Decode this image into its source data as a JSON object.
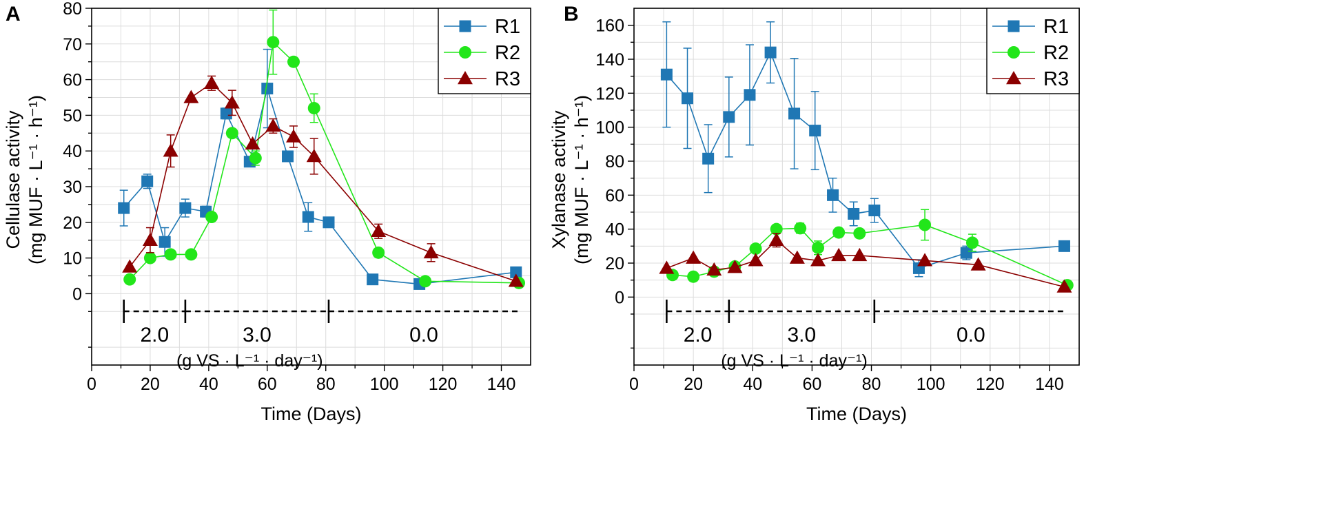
{
  "chart_data": [
    {
      "panel": "A",
      "type": "line",
      "xlabel": "Time (Days)",
      "ylabel_line1": "Cellulase activity",
      "ylabel_line2": "(mg MUF · L⁻¹ · h⁻¹)",
      "xlim": [
        0,
        150
      ],
      "ylim": [
        -20,
        80
      ],
      "xticks": [
        0,
        20,
        40,
        60,
        80,
        100,
        120,
        140
      ],
      "yticks": [
        0,
        10,
        20,
        30,
        40,
        50,
        60,
        70,
        80
      ],
      "legend_position": "top-right",
      "series": [
        {
          "name": "R1",
          "marker": "square",
          "color": "#1f77b4",
          "x": [
            11,
            19,
            25,
            32,
            39,
            46,
            54,
            60,
            67,
            74,
            81,
            96,
            112,
            145
          ],
          "y": [
            24,
            31.5,
            14.5,
            24,
            23,
            50.5,
            37,
            57.5,
            38.5,
            21.5,
            20,
            4,
            2.7,
            6
          ],
          "err": [
            5,
            2,
            4,
            2.5,
            1.5,
            1.5,
            1,
            11,
            1,
            4,
            0,
            0,
            0,
            0
          ]
        },
        {
          "name": "R2",
          "marker": "circle",
          "color": "#22e61a",
          "x": [
            13,
            20,
            27,
            34,
            41,
            48,
            56,
            62,
            69,
            76,
            98,
            114,
            146
          ],
          "y": [
            4,
            10,
            11,
            11,
            21.5,
            45,
            38,
            70.5,
            65,
            52,
            11.5,
            3.5,
            3
          ],
          "err": [
            0,
            0,
            0,
            0,
            0,
            0,
            2,
            9,
            0,
            4,
            0,
            0,
            0
          ]
        },
        {
          "name": "R3",
          "marker": "triangle",
          "color": "#8b0000",
          "x": [
            13,
            20,
            27,
            34,
            41,
            48,
            55,
            62,
            69,
            76,
            98,
            116,
            145
          ],
          "y": [
            7.5,
            15,
            40,
            55,
            59,
            53.5,
            42,
            47,
            44,
            38.5,
            17.5,
            11.5,
            3.5
          ],
          "err": [
            0,
            3.5,
            4.5,
            0,
            2,
            3.5,
            0,
            2,
            3,
            5,
            2,
            2.5,
            0
          ]
        }
      ],
      "phases": [
        {
          "label": "2.0",
          "from": 11,
          "to": 32
        },
        {
          "label": "3.0",
          "from": 32,
          "to": 81
        },
        {
          "label": "0.0",
          "from": 81,
          "to": 146
        }
      ],
      "loading_rate_unit": "(g VS · L⁻¹ · day⁻¹)"
    },
    {
      "panel": "B",
      "type": "line",
      "xlabel": "Time (Days)",
      "ylabel_line1": "Xylanase activity",
      "ylabel_line2": "(mg MUF · L⁻¹ · h⁻¹)",
      "xlim": [
        0,
        150
      ],
      "ylim": [
        -40,
        170
      ],
      "xticks": [
        0,
        20,
        40,
        60,
        80,
        100,
        120,
        140
      ],
      "yticks": [
        0,
        20,
        40,
        60,
        80,
        100,
        120,
        140,
        160
      ],
      "legend_position": "top-right",
      "series": [
        {
          "name": "R1",
          "marker": "square",
          "color": "#1f77b4",
          "x": [
            11,
            18,
            25,
            32,
            39,
            46,
            54,
            61,
            67,
            74,
            81,
            96,
            112,
            145
          ],
          "y": [
            131,
            117,
            81.5,
            106,
            119,
            144,
            108,
            98,
            60,
            49,
            51,
            17,
            26,
            30
          ],
          "err": [
            31,
            29.5,
            20,
            23.5,
            29.5,
            18,
            32.5,
            23,
            10,
            7,
            7,
            5,
            4,
            0
          ]
        },
        {
          "name": "R2",
          "marker": "circle",
          "color": "#22e61a",
          "x": [
            13,
            20,
            27,
            34,
            41,
            48,
            56,
            62,
            69,
            76,
            98,
            114,
            146
          ],
          "y": [
            13,
            12,
            15,
            18,
            28.5,
            40,
            40.5,
            29,
            38,
            37.5,
            42.5,
            32,
            7
          ],
          "err": [
            0,
            0,
            0,
            0,
            0,
            0,
            3,
            4,
            0,
            0,
            9,
            5,
            0
          ]
        },
        {
          "name": "R3",
          "marker": "triangle",
          "color": "#8b0000",
          "x": [
            11,
            20,
            27,
            34,
            41,
            48,
            55,
            62,
            69,
            76,
            98,
            116,
            145
          ],
          "y": [
            17,
            23,
            16,
            17.5,
            21.5,
            33.5,
            23,
            21.5,
            24.5,
            24.5,
            21.5,
            19,
            6
          ],
          "err": [
            0,
            0,
            0,
            0,
            0,
            4,
            0,
            0,
            0,
            0,
            0,
            0,
            0
          ]
        }
      ],
      "phases": [
        {
          "label": "2.0",
          "from": 11,
          "to": 32
        },
        {
          "label": "3.0",
          "from": 32,
          "to": 81
        },
        {
          "label": "0.0",
          "from": 81,
          "to": 146
        }
      ],
      "loading_rate_unit": "(g VS · L⁻¹ · day⁻¹)"
    }
  ]
}
